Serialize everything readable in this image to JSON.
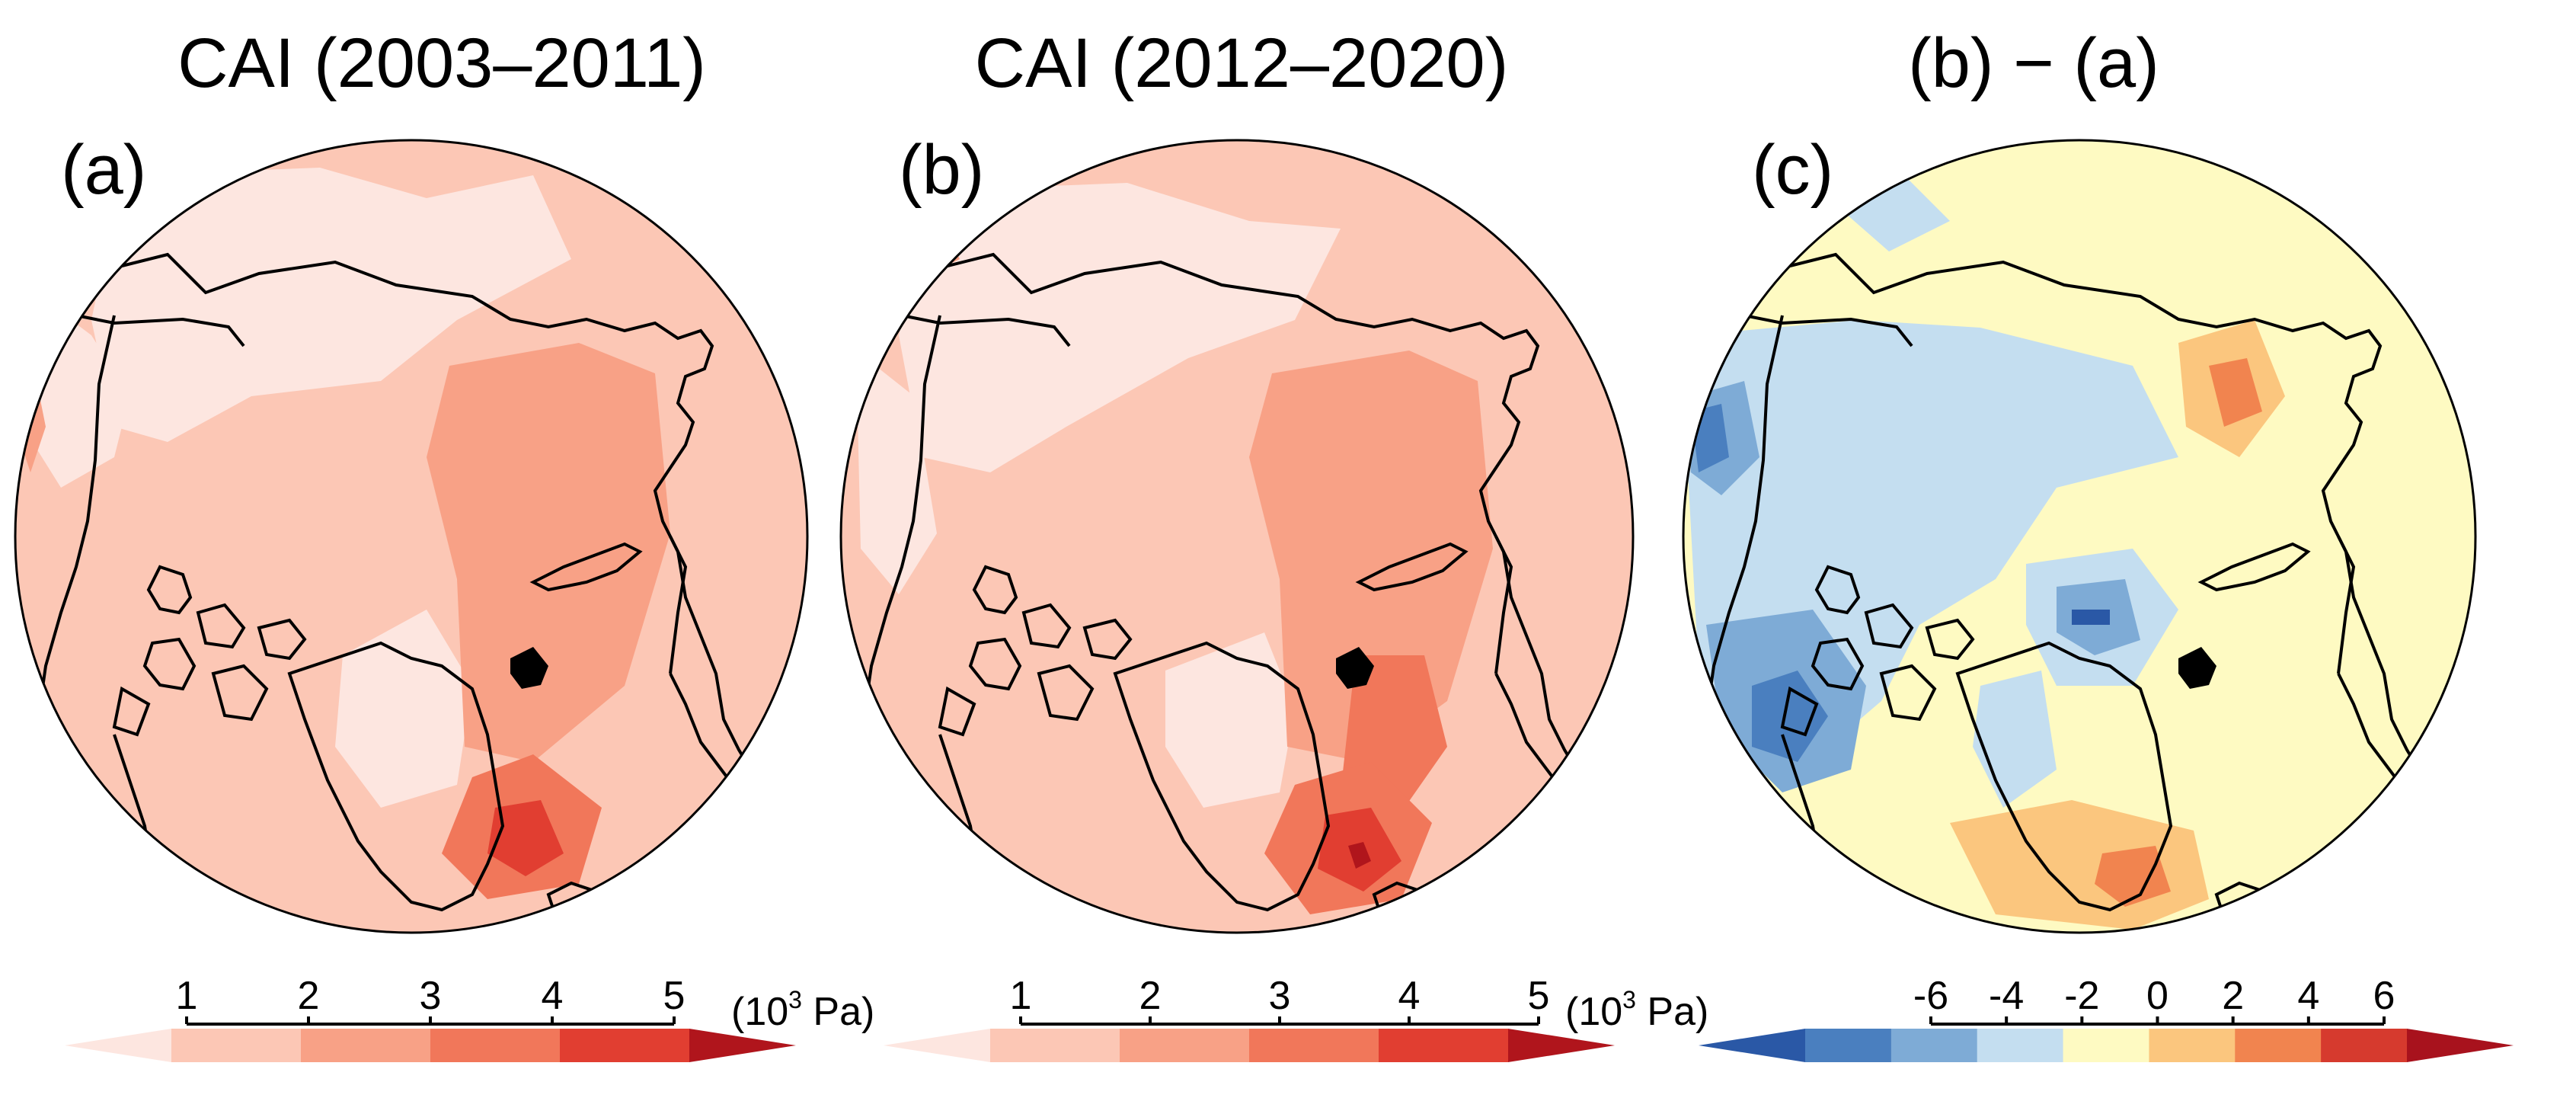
{
  "panels": [
    {
      "id": "a",
      "title": "CAI (2003–2011)",
      "label": "(a)"
    },
    {
      "id": "b",
      "title": "CAI (2012–2020)",
      "label": "(b)"
    },
    {
      "id": "c",
      "title": "(b) − (a)",
      "label": "(c)"
    }
  ],
  "colorbars": {
    "cai": {
      "ticks": [
        "1",
        "2",
        "3",
        "4",
        "5"
      ],
      "unit": "(10",
      "unit_exp": "3",
      "unit_tail": " Pa)",
      "colors": [
        "#fde6e0",
        "#fcc7b5",
        "#f8a186",
        "#f1775a",
        "#e13e31",
        "#b0151c"
      ]
    },
    "diff": {
      "ticks": [
        "-6",
        "-4",
        "-2",
        "0",
        "2",
        "4",
        "6"
      ],
      "colors": [
        "#2a58a6",
        "#4a7fbf",
        "#7eabd6",
        "#c4def0",
        "#fefac2",
        "#fbc67e",
        "#f1844f",
        "#d63a2e",
        "#a8121d"
      ]
    }
  }
}
